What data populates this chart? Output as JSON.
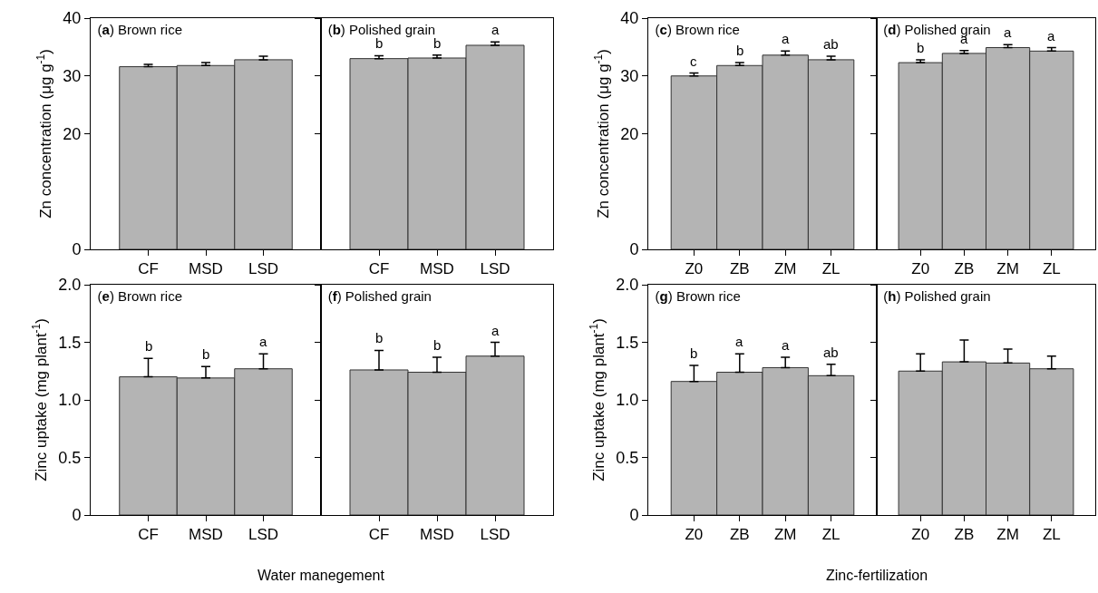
{
  "chart_data": [
    {
      "type": "bar",
      "title": "(a) Brown rice",
      "ylabel": "Zn concentration (μg g$^{-1}$)",
      "categories": [
        "CF",
        "MSD",
        "LSD"
      ],
      "values": [
        31.6,
        31.8,
        32.8
      ],
      "errors": [
        [
          31.6,
          32.0
        ],
        [
          31.8,
          32.3
        ],
        [
          32.8,
          33.4
        ]
      ],
      "color": "#b4b4b4",
      "ylim": [
        0,
        40
      ],
      "yticks": [
        0,
        20,
        30,
        40
      ]
    },
    {
      "type": "bar",
      "title": "(b) Polished grain",
      "categories": [
        "CF",
        "MSD",
        "LSD"
      ],
      "values": [
        33.0,
        33.1,
        35.3
      ],
      "errors": [
        [
          33.0,
          33.5
        ],
        [
          33.1,
          33.6
        ],
        [
          35.3,
          35.9
        ]
      ],
      "value_labels": [
        "b",
        "b",
        "a"
      ],
      "color": "#b4b4b4",
      "ylim": [
        0,
        40
      ],
      "yticks": [
        0,
        20,
        30,
        40
      ],
      "tick_labels": "x"
    },
    {
      "type": "bar",
      "title": "(c) Brown rice",
      "ylabel": "Zn concentration (μg g$^{-1}$)",
      "categories": [
        "Z0",
        "ZB",
        "ZM",
        "ZL"
      ],
      "values": [
        30.0,
        31.8,
        33.6,
        32.8
      ],
      "errors": [
        [
          30.0,
          30.5
        ],
        [
          31.8,
          32.3
        ],
        [
          33.6,
          34.3
        ],
        [
          32.8,
          33.4
        ]
      ],
      "value_labels": [
        "c",
        "b",
        "a",
        "ab"
      ],
      "color": "#b4b4b4",
      "ylim": [
        0,
        40
      ],
      "yticks": [
        0,
        20,
        30,
        40
      ]
    },
    {
      "type": "bar",
      "title": "(d) Polished grain",
      "categories": [
        "Z0",
        "ZB",
        "ZM",
        "ZL"
      ],
      "values": [
        32.3,
        33.9,
        34.9,
        34.3
      ],
      "errors": [
        [
          32.3,
          32.8
        ],
        [
          33.9,
          34.4
        ],
        [
          34.9,
          35.4
        ],
        [
          34.3,
          34.9
        ]
      ],
      "value_labels": [
        "b",
        "a",
        "a",
        "a"
      ],
      "color": "#b4b4b4",
      "ylim": [
        0,
        40
      ],
      "yticks": [
        0,
        20,
        30,
        40
      ],
      "tick_labels": "x"
    },
    {
      "type": "bar",
      "title": "(e) Brown rice",
      "ylabel": "Zinc uptake (mg plant$^{-1}$)",
      "xlabel": "Water manegement",
      "categories": [
        "CF",
        "MSD",
        "LSD"
      ],
      "values": [
        1.2,
        1.19,
        1.27
      ],
      "errors": [
        [
          1.2,
          1.36
        ],
        [
          1.19,
          1.29
        ],
        [
          1.27,
          1.4
        ]
      ],
      "value_labels": [
        "b",
        "b",
        "a"
      ],
      "color": "#b4b4b4",
      "ylim": [
        0,
        2
      ],
      "yticks": [
        0,
        {
          "value": 0.5,
          "label": "0.5"
        },
        {
          "value": 1,
          "label": "1.0"
        },
        {
          "value": 1.5,
          "label": "1.5"
        },
        {
          "value": 2,
          "label": "2.0"
        }
      ]
    },
    {
      "type": "bar",
      "title": "(f) Polished grain",
      "categories": [
        "CF",
        "MSD",
        "LSD"
      ],
      "values": [
        1.26,
        1.24,
        1.38
      ],
      "errors": [
        [
          1.26,
          1.43
        ],
        [
          1.24,
          1.37
        ],
        [
          1.38,
          1.5
        ]
      ],
      "value_labels": [
        "b",
        "b",
        "a"
      ],
      "color": "#b4b4b4",
      "ylim": [
        0,
        2
      ],
      "yticks": [
        0,
        0.5,
        1,
        1.5,
        2
      ],
      "tick_labels": "x"
    },
    {
      "type": "bar",
      "title": "(g) Brown rice",
      "ylabel": "Zinc uptake (mg plant$^{-1}$)",
      "xlabel": "Zinc-fertilization",
      "categories": [
        "Z0",
        "ZB",
        "ZM",
        "ZL"
      ],
      "values": [
        1.16,
        1.24,
        1.28,
        1.21
      ],
      "errors": [
        [
          1.16,
          1.3
        ],
        [
          1.24,
          1.4
        ],
        [
          1.28,
          1.37
        ],
        [
          1.21,
          1.31
        ]
      ],
      "value_labels": [
        "b",
        "a",
        "a",
        "ab"
      ],
      "color": "#b4b4b4",
      "ylim": [
        0,
        2
      ],
      "yticks": [
        0,
        {
          "value": 0.5,
          "label": "0.5"
        },
        {
          "value": 1,
          "label": "1.0"
        },
        {
          "value": 1.5,
          "label": "1.5"
        },
        {
          "value": 2,
          "label": "2.0"
        }
      ]
    },
    {
      "type": "bar",
      "title": "(h) Polished grain",
      "categories": [
        "Z0",
        "ZB",
        "ZM",
        "ZL"
      ],
      "values": [
        1.25,
        1.33,
        1.32,
        1.27
      ],
      "errors": [
        [
          1.25,
          1.4
        ],
        [
          1.33,
          1.52
        ],
        [
          1.32,
          1.44
        ],
        [
          1.27,
          1.38
        ]
      ],
      "color": "#b4b4b4",
      "ylim": [
        0,
        2
      ],
      "yticks": [
        0,
        0.5,
        1,
        1.5,
        2
      ],
      "tick_labels": "x"
    }
  ]
}
